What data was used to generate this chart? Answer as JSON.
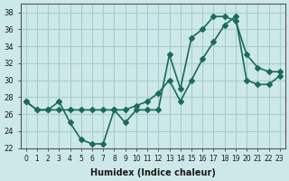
{
  "xlabel": "Humidex (Indice chaleur)",
  "ylabel": "",
  "bg_color": "#cce8e8",
  "grid_color": "#aacccc",
  "line_color": "#1a6b5a",
  "xlim": [
    -0.5,
    23.5
  ],
  "ylim": [
    22,
    39
  ],
  "yticks": [
    22,
    24,
    26,
    28,
    30,
    32,
    34,
    36,
    38
  ],
  "xticks": [
    0,
    1,
    2,
    3,
    4,
    5,
    6,
    7,
    8,
    9,
    10,
    11,
    12,
    13,
    14,
    15,
    16,
    17,
    18,
    19,
    20,
    21,
    22,
    23
  ],
  "line1_x": [
    0,
    1,
    2,
    3,
    4,
    5,
    6,
    7,
    8,
    9,
    10,
    11,
    12,
    13,
    14,
    15,
    16,
    17,
    18,
    19,
    20,
    21,
    22,
    23
  ],
  "line1_y": [
    27.5,
    26.5,
    26.5,
    27.5,
    25.0,
    23.0,
    22.5,
    22.5,
    26.5,
    25.0,
    26.5,
    26.5,
    26.5,
    33.0,
    29.0,
    35.0,
    36.0,
    37.5,
    37.5,
    37.0,
    33.0,
    31.5,
    31.0,
    31.0
  ],
  "line2_x": [
    0,
    1,
    2,
    3,
    4,
    5,
    6,
    7,
    8,
    9,
    10,
    11,
    12,
    13,
    14,
    15,
    16,
    17,
    18,
    19,
    20,
    21,
    22,
    23
  ],
  "line2_y": [
    27.5,
    26.5,
    26.5,
    26.5,
    26.5,
    26.5,
    26.5,
    26.5,
    26.5,
    26.5,
    27.0,
    27.5,
    28.5,
    30.0,
    27.5,
    30.0,
    32.5,
    34.5,
    36.5,
    37.5,
    30.0,
    29.5,
    29.5,
    30.5
  ]
}
